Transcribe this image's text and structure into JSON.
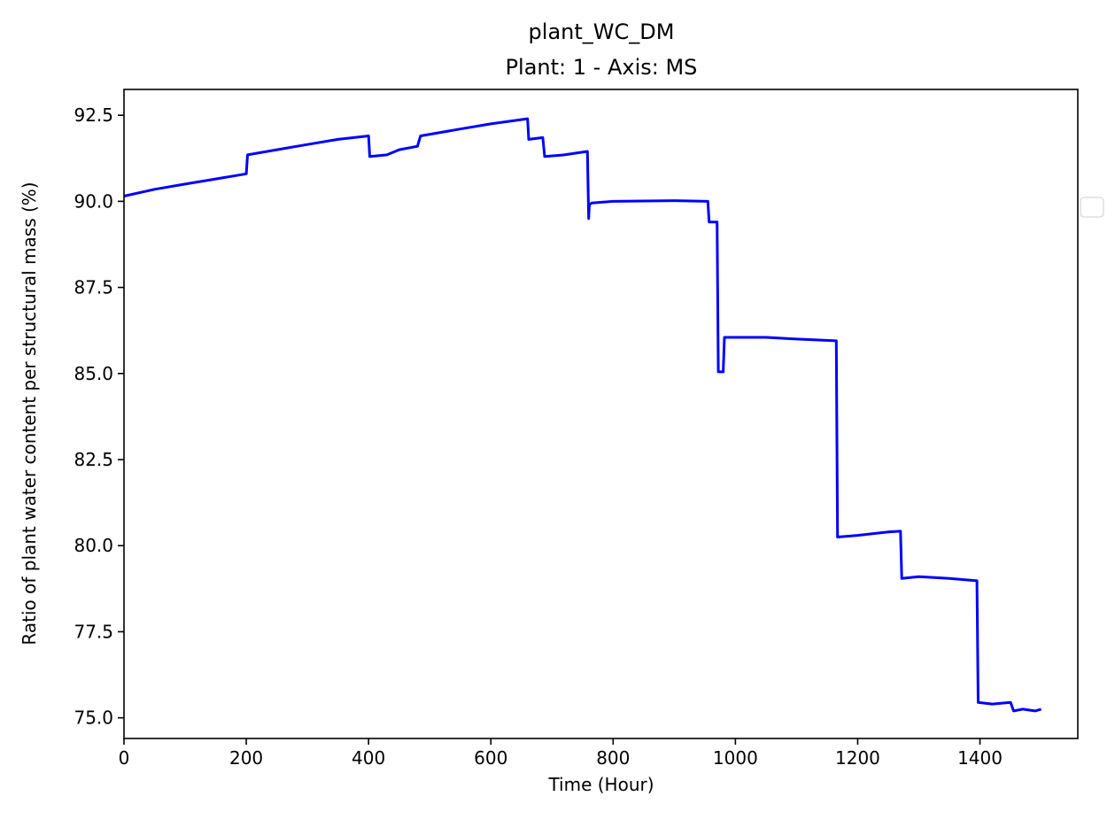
{
  "chart_data": {
    "type": "line",
    "title": "plant_WC_DM",
    "subtitle": "Plant: 1 - Axis: MS",
    "xlabel": "Time (Hour)",
    "ylabel": "Ratio of plant water content per structural mass (%)",
    "xlim": [
      0,
      1560
    ],
    "ylim": [
      74.4,
      93.25
    ],
    "xticks": [
      0,
      200,
      400,
      600,
      800,
      1000,
      1200,
      1400
    ],
    "xtick_labels": [
      "0",
      "200",
      "400",
      "600",
      "800",
      "1000",
      "1200",
      "1400"
    ],
    "yticks": [
      75.0,
      77.5,
      80.0,
      82.5,
      85.0,
      87.5,
      90.0,
      92.5
    ],
    "ytick_labels": [
      "75.0",
      "77.5",
      "80.0",
      "82.5",
      "85.0",
      "87.5",
      "90.0",
      "92.5"
    ],
    "grid": false,
    "legend": "right (empty)",
    "series": [
      {
        "color": "#0000ff",
        "x": [
          0,
          50,
          100,
          150,
          200,
          202,
          250,
          300,
          350,
          400,
          402,
          430,
          450,
          480,
          485,
          550,
          600,
          660,
          662,
          685,
          688,
          720,
          758,
          760,
          761,
          765,
          800,
          900,
          955,
          957,
          970,
          972,
          980,
          982,
          1000,
          1050,
          1100,
          1165,
          1167,
          1200,
          1250,
          1270,
          1272,
          1300,
          1350,
          1395,
          1397,
          1420,
          1450,
          1455,
          1470,
          1490,
          1500
        ],
        "y": [
          90.15,
          90.35,
          90.5,
          90.65,
          90.8,
          91.35,
          91.5,
          91.65,
          91.8,
          91.9,
          91.3,
          91.35,
          91.5,
          91.6,
          91.9,
          92.1,
          92.25,
          92.4,
          91.8,
          91.85,
          91.3,
          91.35,
          91.45,
          89.5,
          89.9,
          89.95,
          90.0,
          90.02,
          90.0,
          89.4,
          89.4,
          85.05,
          85.05,
          86.05,
          86.05,
          86.05,
          86.0,
          85.95,
          80.25,
          80.3,
          80.4,
          80.42,
          79.05,
          79.1,
          79.05,
          78.98,
          75.45,
          75.4,
          75.45,
          75.2,
          75.25,
          75.2,
          75.25
        ]
      }
    ]
  }
}
